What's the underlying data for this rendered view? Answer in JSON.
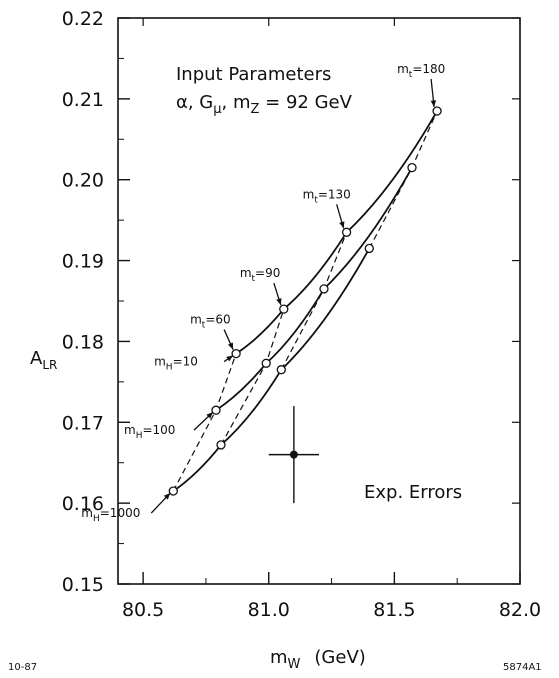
{
  "chart_data": {
    "type": "line",
    "xlabel": "m_W  (GeV)",
    "ylabel": "A_LR",
    "xlim": [
      80.4,
      82.0
    ],
    "ylim": [
      0.15,
      0.22
    ],
    "x_ticks": [
      80.5,
      81.0,
      81.5,
      82.0
    ],
    "x_tick_labels": [
      "80.5",
      "81.0",
      "81.5",
      "82.0"
    ],
    "y_ticks": [
      0.15,
      0.16,
      0.17,
      0.18,
      0.19,
      0.2,
      0.21,
      0.22
    ],
    "y_tick_labels": [
      "0.15",
      "0.16",
      "0.17",
      "0.18",
      "0.19",
      "0.20",
      "0.21",
      "0.22"
    ],
    "inset_title": "Input Parameters",
    "inset_params": "α, G_μ, m_Z = 92 GeV",
    "series": [
      {
        "name": "m_H = 10",
        "line": "solid",
        "x": [
          80.87,
          81.06,
          81.31,
          81.67
        ],
        "y": [
          0.1785,
          0.184,
          0.1935,
          0.2085
        ]
      },
      {
        "name": "m_H = 100",
        "line": "solid",
        "x": [
          80.79,
          80.99,
          81.22,
          81.57
        ],
        "y": [
          0.1715,
          0.1773,
          0.1865,
          0.2015
        ]
      },
      {
        "name": "m_H = 1000",
        "line": "solid",
        "x": [
          80.62,
          80.81,
          81.05,
          81.4
        ],
        "y": [
          0.1615,
          0.1672,
          0.1765,
          0.1915
        ]
      }
    ],
    "mt_lines": [
      {
        "label": "m_t = 60",
        "x": [
          80.62,
          80.79,
          80.87
        ],
        "y": [
          0.1615,
          0.1715,
          0.1785
        ]
      },
      {
        "label": "m_t = 90",
        "x": [
          80.81,
          80.99,
          81.06
        ],
        "y": [
          0.1672,
          0.1773,
          0.184
        ]
      },
      {
        "label": "m_t = 130",
        "x": [
          81.05,
          81.22,
          81.31
        ],
        "y": [
          0.1765,
          0.1865,
          0.1935
        ]
      },
      {
        "label": "m_t = 180",
        "x": [
          81.4,
          81.57,
          81.67
        ],
        "y": [
          0.1915,
          0.2015,
          0.2085
        ]
      }
    ],
    "annotations": [
      {
        "text": "m_t = 180",
        "x": 81.67,
        "y": 0.2085
      },
      {
        "text": "m_t = 130",
        "x": 81.31,
        "y": 0.1935
      },
      {
        "text": "m_t = 90",
        "x": 81.06,
        "y": 0.184
      },
      {
        "text": "m_t = 60",
        "x": 80.87,
        "y": 0.1785
      },
      {
        "text": "m_H = 10",
        "x": 80.87,
        "y": 0.1785
      },
      {
        "text": "m_H = 100",
        "x": 80.79,
        "y": 0.1715
      },
      {
        "text": "m_H = 1000",
        "x": 80.62,
        "y": 0.1615
      }
    ],
    "error_bar": {
      "label": "Exp. Errors",
      "x": 81.1,
      "y": 0.166,
      "xerr": 0.1,
      "yerr": 0.006
    },
    "footer_left": "10-87",
    "footer_right": "5874A1",
    "grid": false
  }
}
